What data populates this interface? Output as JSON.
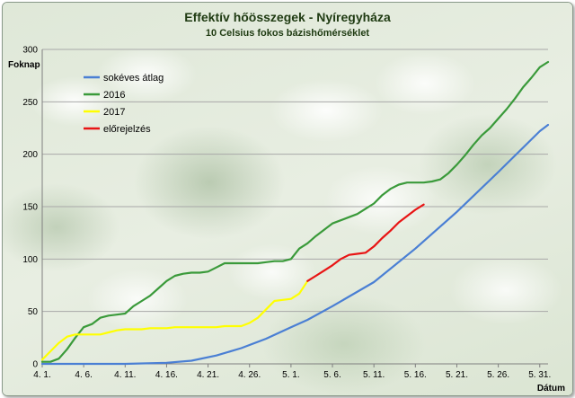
{
  "chart_data": {
    "type": "line",
    "title": "Effektív hőösszegek - Nyíregyháza",
    "subtitle": "10 Celsius fokos bázishőmérséklet",
    "ylabel": "Foknap",
    "xlabel": "Dátum",
    "ylim": [
      0,
      300
    ],
    "yticks": [
      0,
      50,
      100,
      150,
      200,
      250,
      300
    ],
    "xlim": [
      1,
      62
    ],
    "x_note": "x = day number counted from April 1 (1 = 4. 1.)",
    "xticks": [
      {
        "x": 1,
        "label": "4. 1."
      },
      {
        "x": 6,
        "label": "4. 6."
      },
      {
        "x": 11,
        "label": "4. 11."
      },
      {
        "x": 16,
        "label": "4. 16."
      },
      {
        "x": 21,
        "label": "4. 21."
      },
      {
        "x": 26,
        "label": "4. 26."
      },
      {
        "x": 31,
        "label": "5. 1."
      },
      {
        "x": 36,
        "label": "5. 6."
      },
      {
        "x": 41,
        "label": "5. 11."
      },
      {
        "x": 46,
        "label": "5. 16."
      },
      {
        "x": 51,
        "label": "5. 21."
      },
      {
        "x": 56,
        "label": "5. 26."
      },
      {
        "x": 61,
        "label": "5. 31."
      }
    ],
    "grid": true,
    "legend_position": "top-left",
    "series": [
      {
        "name": "sokéves átlag",
        "color": "#4a7fd4",
        "points": [
          [
            1,
            0
          ],
          [
            6,
            0
          ],
          [
            11,
            0
          ],
          [
            16,
            1
          ],
          [
            19,
            3
          ],
          [
            22,
            8
          ],
          [
            25,
            15
          ],
          [
            28,
            24
          ],
          [
            31,
            35
          ],
          [
            33,
            42
          ],
          [
            36,
            55
          ],
          [
            41,
            78
          ],
          [
            46,
            110
          ],
          [
            51,
            145
          ],
          [
            56,
            183
          ],
          [
            61,
            222
          ],
          [
            62,
            228
          ]
        ]
      },
      {
        "name": "2016",
        "color": "#3a9a3a",
        "points": [
          [
            1,
            2
          ],
          [
            2,
            2
          ],
          [
            3,
            5
          ],
          [
            4,
            14
          ],
          [
            5,
            25
          ],
          [
            6,
            35
          ],
          [
            7,
            38
          ],
          [
            8,
            44
          ],
          [
            9,
            46
          ],
          [
            10,
            47
          ],
          [
            11,
            48
          ],
          [
            12,
            55
          ],
          [
            13,
            60
          ],
          [
            14,
            65
          ],
          [
            15,
            72
          ],
          [
            16,
            79
          ],
          [
            17,
            84
          ],
          [
            18,
            86
          ],
          [
            19,
            87
          ],
          [
            20,
            87
          ],
          [
            21,
            88
          ],
          [
            22,
            92
          ],
          [
            23,
            96
          ],
          [
            24,
            96
          ],
          [
            25,
            96
          ],
          [
            26,
            96
          ],
          [
            27,
            96
          ],
          [
            28,
            97
          ],
          [
            29,
            98
          ],
          [
            30,
            98
          ],
          [
            31,
            100
          ],
          [
            32,
            110
          ],
          [
            33,
            115
          ],
          [
            34,
            122
          ],
          [
            35,
            128
          ],
          [
            36,
            134
          ],
          [
            37,
            137
          ],
          [
            38,
            140
          ],
          [
            39,
            143
          ],
          [
            40,
            148
          ],
          [
            41,
            153
          ],
          [
            42,
            161
          ],
          [
            43,
            167
          ],
          [
            44,
            171
          ],
          [
            45,
            173
          ],
          [
            46,
            173
          ],
          [
            47,
            173
          ],
          [
            48,
            174
          ],
          [
            49,
            176
          ],
          [
            50,
            182
          ],
          [
            51,
            190
          ],
          [
            52,
            199
          ],
          [
            53,
            209
          ],
          [
            54,
            218
          ],
          [
            55,
            225
          ],
          [
            56,
            234
          ],
          [
            57,
            243
          ],
          [
            58,
            253
          ],
          [
            59,
            264
          ],
          [
            60,
            273
          ],
          [
            61,
            283
          ],
          [
            62,
            288
          ]
        ]
      },
      {
        "name": "2017",
        "color": "#ffff00",
        "points": [
          [
            1,
            4
          ],
          [
            2,
            12
          ],
          [
            3,
            20
          ],
          [
            4,
            26
          ],
          [
            5,
            28
          ],
          [
            6,
            28
          ],
          [
            7,
            28
          ],
          [
            8,
            28
          ],
          [
            9,
            30
          ],
          [
            10,
            32
          ],
          [
            11,
            33
          ],
          [
            12,
            33
          ],
          [
            13,
            33
          ],
          [
            14,
            34
          ],
          [
            15,
            34
          ],
          [
            16,
            34
          ],
          [
            17,
            35
          ],
          [
            18,
            35
          ],
          [
            19,
            35
          ],
          [
            20,
            35
          ],
          [
            21,
            35
          ],
          [
            22,
            35
          ],
          [
            23,
            36
          ],
          [
            24,
            36
          ],
          [
            25,
            36
          ],
          [
            26,
            39
          ],
          [
            27,
            44
          ],
          [
            28,
            52
          ],
          [
            29,
            60
          ],
          [
            30,
            61
          ],
          [
            31,
            62
          ],
          [
            32,
            67
          ],
          [
            33,
            79
          ]
        ]
      },
      {
        "name": "előrejelzés",
        "color": "#e81414",
        "points": [
          [
            33,
            79
          ],
          [
            34,
            84
          ],
          [
            35,
            89
          ],
          [
            36,
            94
          ],
          [
            37,
            100
          ],
          [
            38,
            104
          ],
          [
            39,
            105
          ],
          [
            40,
            106
          ],
          [
            41,
            112
          ],
          [
            42,
            120
          ],
          [
            43,
            127
          ],
          [
            44,
            135
          ],
          [
            45,
            141
          ],
          [
            46,
            147
          ],
          [
            47,
            152
          ]
        ]
      }
    ]
  }
}
